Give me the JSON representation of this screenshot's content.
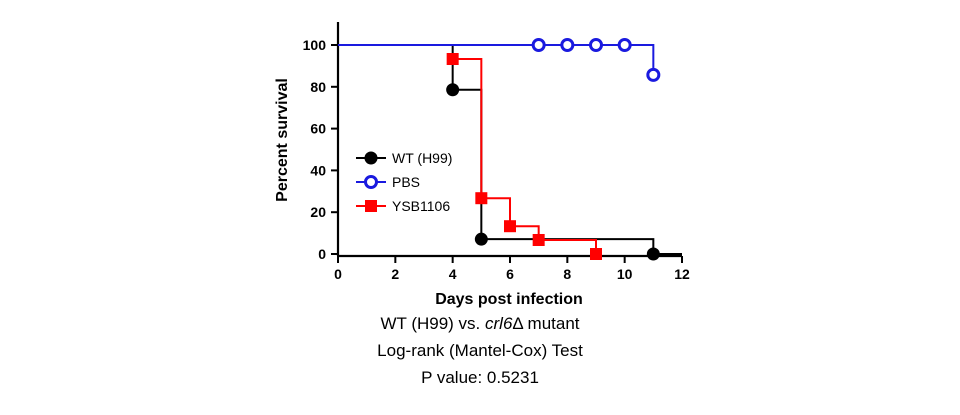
{
  "chart_data": {
    "type": "line",
    "subtype": "kaplan-meier-survival",
    "xlabel": "Days post infection",
    "ylabel": "Percent survival",
    "xlim": [
      0,
      12
    ],
    "ylim": [
      0,
      100
    ],
    "x_ticks": [
      "0",
      "2",
      "4",
      "6",
      "8",
      "10",
      "12"
    ],
    "y_ticks": [
      "0",
      "20",
      "40",
      "60",
      "80",
      "100"
    ],
    "grid": false,
    "legend_position": "left-middle",
    "series": [
      {
        "name": "WT (H99)",
        "color": "#000000",
        "marker": "filled-circle",
        "steps": [
          [
            0,
            100
          ],
          [
            4,
            78.6
          ],
          [
            5,
            7.1
          ],
          [
            11,
            0
          ],
          [
            12,
            0
          ]
        ],
        "marker_points": [
          [
            4,
            78.6
          ],
          [
            5,
            7.1
          ],
          [
            11,
            0
          ]
        ]
      },
      {
        "name": "PBS",
        "color": "#1a1adf",
        "marker": "open-circle",
        "steps": [
          [
            0,
            100
          ],
          [
            11,
            85.7
          ]
        ],
        "marker_points": [
          [
            7,
            100
          ],
          [
            8,
            100
          ],
          [
            9,
            100
          ],
          [
            10,
            100
          ],
          [
            11,
            85.7
          ]
        ]
      },
      {
        "name": "YSB1106",
        "color": "#ff0000",
        "marker": "filled-square",
        "steps": [
          [
            4,
            93.3
          ],
          [
            5,
            26.7
          ],
          [
            6,
            13.3
          ],
          [
            7,
            6.7
          ],
          [
            9,
            0
          ]
        ],
        "marker_points": [
          [
            4,
            93.3
          ],
          [
            5,
            26.7
          ],
          [
            6,
            13.3
          ],
          [
            7,
            6.7
          ],
          [
            9,
            0
          ]
        ]
      }
    ]
  },
  "caption": {
    "line1_before": "WT (H99) vs. ",
    "line1_italic": "crl6",
    "line1_after": "Δ mutant",
    "line2": "Log-rank (Mantel-Cox) Test",
    "line3": "P value: 0.5231"
  }
}
